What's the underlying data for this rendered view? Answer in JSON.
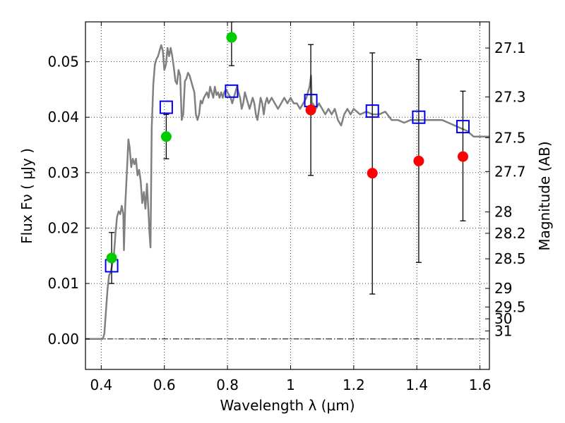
{
  "chart_data": {
    "type": "scatter",
    "xlabel": "Wavelength  λ (μm)",
    "ylabel": "Flux  Fν  ( μJy )",
    "ylabel_right": "Magnitude (AB)",
    "xlim": [
      0.35,
      1.63
    ],
    "ylim": [
      -0.0055,
      0.0572
    ],
    "grid": true,
    "x_ticks": [
      0.4,
      0.6,
      0.8,
      1.0,
      1.2,
      1.4,
      1.6
    ],
    "x_tick_labels": [
      "0.4",
      "0.6",
      "0.8",
      "1",
      "1.2",
      "1.4",
      "1.6"
    ],
    "y_ticks": [
      0.0,
      0.01,
      0.02,
      0.03,
      0.04,
      0.05
    ],
    "y_tick_labels": [
      "0.00",
      "0.01",
      "0.02",
      "0.03",
      "0.04",
      "0.05"
    ],
    "mag_ticks": [
      27.1,
      27.3,
      27.5,
      27.7,
      28,
      28.2,
      28.5,
      29,
      29.5,
      30,
      31
    ],
    "mag_tick_labels": [
      "27.1",
      "27.3",
      "27.5",
      "27.7",
      "28",
      "28.2",
      "28.5",
      "29",
      "29.5",
      "30",
      "31"
    ],
    "zero_line": 0.0,
    "series": [
      {
        "kind": "line",
        "color": "#808080",
        "points": [
          [
            0.35,
            0.0
          ],
          [
            0.4,
            0.0
          ],
          [
            0.405,
            0.0
          ],
          [
            0.41,
            0.001
          ],
          [
            0.415,
            0.005
          ],
          [
            0.42,
            0.009
          ],
          [
            0.425,
            0.0115
          ],
          [
            0.43,
            0.012
          ],
          [
            0.435,
            0.0135
          ],
          [
            0.44,
            0.015
          ],
          [
            0.445,
            0.019
          ],
          [
            0.45,
            0.022
          ],
          [
            0.455,
            0.023
          ],
          [
            0.46,
            0.0225
          ],
          [
            0.465,
            0.024
          ],
          [
            0.47,
            0.0225
          ],
          [
            0.472,
            0.016
          ],
          [
            0.476,
            0.024
          ],
          [
            0.482,
            0.031
          ],
          [
            0.486,
            0.036
          ],
          [
            0.49,
            0.0345
          ],
          [
            0.495,
            0.031
          ],
          [
            0.5,
            0.0325
          ],
          [
            0.505,
            0.0315
          ],
          [
            0.51,
            0.0325
          ],
          [
            0.515,
            0.0295
          ],
          [
            0.52,
            0.0305
          ],
          [
            0.525,
            0.0285
          ],
          [
            0.53,
            0.0245
          ],
          [
            0.535,
            0.0265
          ],
          [
            0.54,
            0.0235
          ],
          [
            0.545,
            0.028
          ],
          [
            0.55,
            0.0225
          ],
          [
            0.553,
            0.019
          ],
          [
            0.556,
            0.0165
          ],
          [
            0.56,
            0.038
          ],
          [
            0.565,
            0.046
          ],
          [
            0.57,
            0.0495
          ],
          [
            0.575,
            0.0505
          ],
          [
            0.58,
            0.051
          ],
          [
            0.585,
            0.052
          ],
          [
            0.59,
            0.053
          ],
          [
            0.595,
            0.052
          ],
          [
            0.6,
            0.0485
          ],
          [
            0.605,
            0.0495
          ],
          [
            0.61,
            0.0525
          ],
          [
            0.615,
            0.051
          ],
          [
            0.62,
            0.0525
          ],
          [
            0.625,
            0.051
          ],
          [
            0.63,
            0.049
          ],
          [
            0.635,
            0.0465
          ],
          [
            0.64,
            0.046
          ],
          [
            0.645,
            0.0485
          ],
          [
            0.65,
            0.0475
          ],
          [
            0.655,
            0.0395
          ],
          [
            0.66,
            0.0405
          ],
          [
            0.665,
            0.0465
          ],
          [
            0.67,
            0.047
          ],
          [
            0.675,
            0.048
          ],
          [
            0.68,
            0.0475
          ],
          [
            0.685,
            0.0465
          ],
          [
            0.69,
            0.0455
          ],
          [
            0.695,
            0.0445
          ],
          [
            0.7,
            0.0405
          ],
          [
            0.705,
            0.0395
          ],
          [
            0.71,
            0.0405
          ],
          [
            0.715,
            0.043
          ],
          [
            0.72,
            0.0425
          ],
          [
            0.725,
            0.0435
          ],
          [
            0.73,
            0.044
          ],
          [
            0.735,
            0.0445
          ],
          [
            0.74,
            0.0435
          ],
          [
            0.745,
            0.0455
          ],
          [
            0.75,
            0.0445
          ],
          [
            0.755,
            0.0435
          ],
          [
            0.76,
            0.0455
          ],
          [
            0.765,
            0.044
          ],
          [
            0.77,
            0.0445
          ],
          [
            0.775,
            0.0435
          ],
          [
            0.78,
            0.0445
          ],
          [
            0.785,
            0.0435
          ],
          [
            0.79,
            0.0445
          ],
          [
            0.795,
            0.045
          ],
          [
            0.8,
            0.0445
          ],
          [
            0.81,
            0.0435
          ],
          [
            0.815,
            0.0425
          ],
          [
            0.82,
            0.0435
          ],
          [
            0.825,
            0.0445
          ],
          [
            0.83,
            0.0455
          ],
          [
            0.835,
            0.0445
          ],
          [
            0.84,
            0.0435
          ],
          [
            0.845,
            0.0415
          ],
          [
            0.85,
            0.0425
          ],
          [
            0.855,
            0.0445
          ],
          [
            0.86,
            0.0435
          ],
          [
            0.865,
            0.0425
          ],
          [
            0.87,
            0.0415
          ],
          [
            0.875,
            0.0425
          ],
          [
            0.88,
            0.0435
          ],
          [
            0.885,
            0.0425
          ],
          [
            0.89,
            0.0405
          ],
          [
            0.895,
            0.0395
          ],
          [
            0.9,
            0.0415
          ],
          [
            0.905,
            0.0435
          ],
          [
            0.91,
            0.0425
          ],
          [
            0.915,
            0.0405
          ],
          [
            0.92,
            0.0425
          ],
          [
            0.925,
            0.0435
          ],
          [
            0.93,
            0.0425
          ],
          [
            0.94,
            0.0435
          ],
          [
            0.95,
            0.0425
          ],
          [
            0.96,
            0.0415
          ],
          [
            0.97,
            0.0425
          ],
          [
            0.98,
            0.0435
          ],
          [
            0.99,
            0.0425
          ],
          [
            1.0,
            0.0435
          ],
          [
            1.01,
            0.0425
          ],
          [
            1.02,
            0.0425
          ],
          [
            1.03,
            0.0415
          ],
          [
            1.04,
            0.0425
          ],
          [
            1.05,
            0.0435
          ],
          [
            1.06,
            0.0455
          ],
          [
            1.065,
            0.0475
          ],
          [
            1.068,
            0.0405
          ],
          [
            1.07,
            0.0425
          ],
          [
            1.08,
            0.0415
          ],
          [
            1.09,
            0.0425
          ],
          [
            1.1,
            0.0415
          ],
          [
            1.11,
            0.0405
          ],
          [
            1.12,
            0.0415
          ],
          [
            1.13,
            0.0405
          ],
          [
            1.14,
            0.0415
          ],
          [
            1.15,
            0.0395
          ],
          [
            1.16,
            0.0385
          ],
          [
            1.17,
            0.0405
          ],
          [
            1.18,
            0.0415
          ],
          [
            1.19,
            0.0405
          ],
          [
            1.2,
            0.0415
          ],
          [
            1.22,
            0.0405
          ],
          [
            1.24,
            0.041
          ],
          [
            1.26,
            0.0405
          ],
          [
            1.28,
            0.0405
          ],
          [
            1.3,
            0.041
          ],
          [
            1.32,
            0.0395
          ],
          [
            1.34,
            0.0395
          ],
          [
            1.36,
            0.039
          ],
          [
            1.38,
            0.0395
          ],
          [
            1.4,
            0.0395
          ],
          [
            1.42,
            0.0395
          ],
          [
            1.44,
            0.0395
          ],
          [
            1.46,
            0.0395
          ],
          [
            1.48,
            0.0395
          ],
          [
            1.5,
            0.039
          ],
          [
            1.52,
            0.0385
          ],
          [
            1.54,
            0.038
          ],
          [
            1.56,
            0.0375
          ],
          [
            1.58,
            0.0365
          ],
          [
            1.6,
            0.0365
          ],
          [
            1.63,
            0.0365
          ]
        ]
      },
      {
        "kind": "squares",
        "color": "#0000ee",
        "points": [
          [
            0.433,
            0.0132
          ],
          [
            0.606,
            0.0418
          ],
          [
            0.813,
            0.0447
          ],
          [
            1.064,
            0.043
          ],
          [
            1.259,
            0.0411
          ],
          [
            1.406,
            0.04
          ],
          [
            1.546,
            0.0383
          ]
        ]
      },
      {
        "kind": "circles",
        "color": "#00cc00",
        "points": [
          [
            0.433,
            0.0146
          ],
          [
            0.606,
            0.0365
          ],
          [
            0.813,
            0.0544
          ]
        ]
      },
      {
        "kind": "circles",
        "color": "#ff0000",
        "points": [
          [
            1.064,
            0.0413
          ],
          [
            1.259,
            0.0299
          ],
          [
            1.406,
            0.0321
          ],
          [
            1.546,
            0.0329
          ]
        ]
      },
      {
        "kind": "errorbars",
        "color": "#000000",
        "bars": [
          [
            0.433,
            0.01,
            0.0192
          ],
          [
            0.606,
            0.0325,
            0.0405
          ],
          [
            0.813,
            0.0493,
            0.0572
          ],
          [
            1.064,
            0.0295,
            0.0531
          ],
          [
            1.259,
            0.0081,
            0.0516
          ],
          [
            1.406,
            0.0138,
            0.0504
          ],
          [
            1.546,
            0.0213,
            0.0447
          ]
        ]
      }
    ]
  }
}
